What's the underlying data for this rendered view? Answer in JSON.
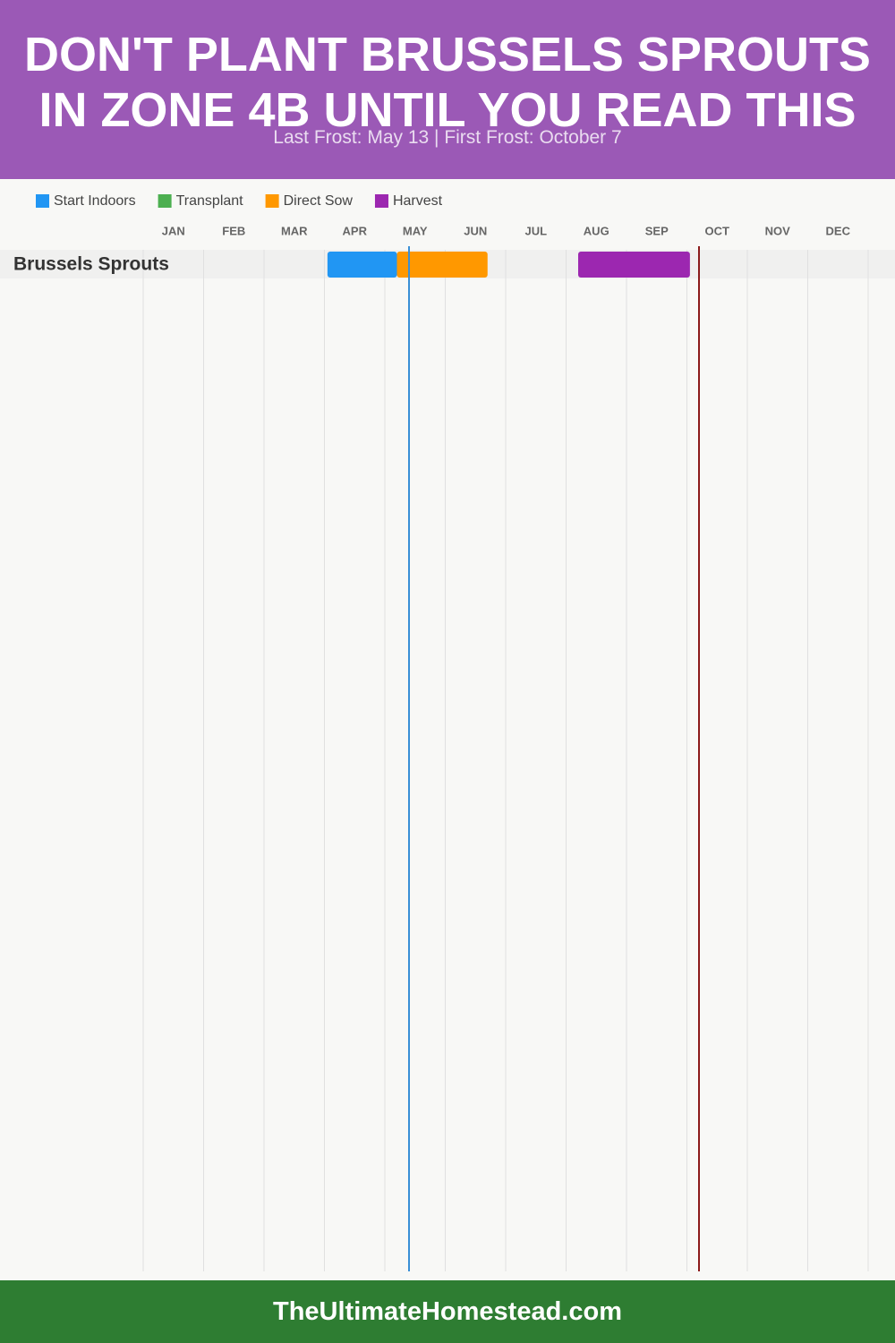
{
  "chart_data": {
    "type": "gantt",
    "title": "DON'T PLANT BRUSSELS SPROUTS IN ZONE 4B UNTIL YOU READ THIS",
    "subtitle": "Last Frost: May 13 | First Frost: October 7",
    "months": [
      "JAN",
      "FEB",
      "MAR",
      "APR",
      "MAY",
      "JUN",
      "JUL",
      "AUG",
      "SEP",
      "OCT",
      "NOV",
      "DEC"
    ],
    "xlim": [
      0,
      12
    ],
    "rows": [
      "Brussels Sprouts"
    ],
    "series": [
      {
        "name": "Start Indoors",
        "color": "#2196f3",
        "values": [
          [
            3.05,
            4.2
          ]
        ]
      },
      {
        "name": "Transplant",
        "color": "#4caf50",
        "values": [
          null
        ]
      },
      {
        "name": "Direct Sow",
        "color": "#ff9800",
        "values": [
          [
            4.2,
            5.7
          ]
        ]
      },
      {
        "name": "Harvest",
        "color": "#9c27b0",
        "values": [
          [
            7.2,
            9.05
          ]
        ]
      }
    ],
    "frost_lines": [
      {
        "value": 4.4,
        "color": "#3a8fd6"
      },
      {
        "value": 9.2,
        "color": "#8b1a1a"
      }
    ],
    "footer": "TheUltimateHomestead.com"
  }
}
